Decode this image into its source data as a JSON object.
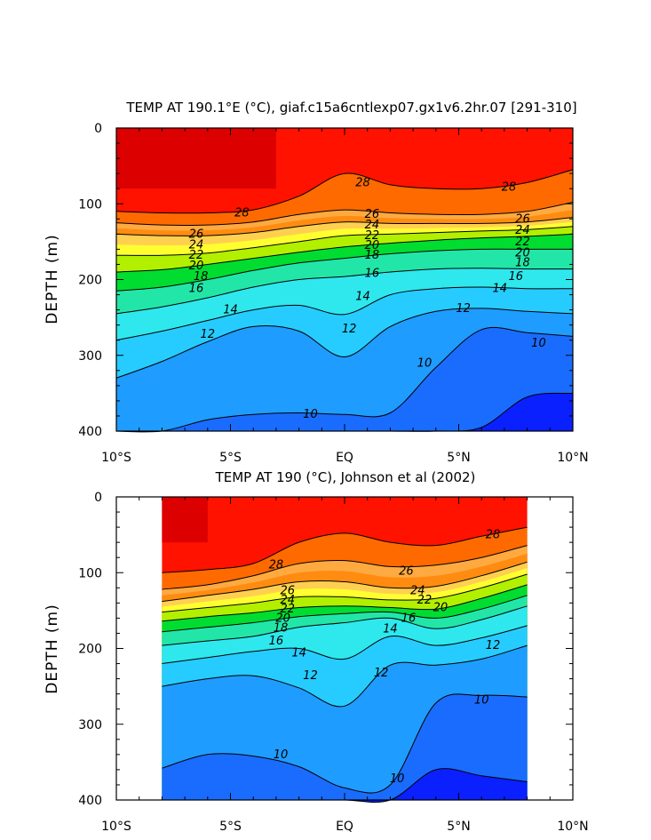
{
  "colors": {
    "band_bottom": "#0a20ff",
    "band_10": "#1a6cff",
    "band_12_deep": "#1f9cff",
    "band_12": "#26ccff",
    "band_14": "#2ee8ee",
    "band_16": "#22e6a8",
    "band_18": "#00dd30",
    "band_20": "#b2f000",
    "band_22": "#ffff30",
    "band_23": "#ffd050",
    "band_24": "#ffaa40",
    "band_25": "#ff8c10",
    "band_26": "#ff6a00",
    "band_28": "#ff4a00",
    "band_surface": "#ff1200",
    "band_warm_pool": "#dd0000",
    "contour_line": "#000000"
  },
  "chart_data": [
    {
      "type": "contour",
      "title": "TEMP AT 190.1°E (°C), giaf.c15a6cntlexp07.gx1v6.2hr.07 [291-310]",
      "xlabel": "",
      "ylabel": "DEPTH (m)",
      "x_ticks": [
        "10°S",
        "5°S",
        "EQ",
        "5°N",
        "10°N"
      ],
      "x_tick_values": [
        -10,
        -5,
        0,
        5,
        10
      ],
      "y_ticks": [
        "0",
        "100",
        "200",
        "300",
        "400"
      ],
      "y_tick_values": [
        0,
        100,
        200,
        300,
        400
      ],
      "xlim": [
        -10,
        10
      ],
      "ylim": [
        400,
        0
      ],
      "data_xlim": [
        -10,
        10
      ],
      "lat": [
        -10,
        -8,
        -6,
        -4,
        -2,
        0,
        2,
        4,
        6,
        8,
        10
      ],
      "contour_levels": [
        10,
        12,
        14,
        16,
        18,
        20,
        22,
        24,
        26,
        28
      ],
      "isotherm_depth": {
        "28": [
          110,
          112,
          112,
          108,
          90,
          60,
          75,
          80,
          80,
          72,
          55
        ],
        "26": [
          125,
          128,
          128,
          124,
          114,
          108,
          112,
          114,
          114,
          110,
          98
        ],
        "24": [
          140,
          142,
          142,
          138,
          130,
          124,
          126,
          126,
          126,
          124,
          118
        ],
        "22": [
          168,
          168,
          165,
          158,
          150,
          142,
          140,
          138,
          136,
          134,
          130
        ],
        "20": [
          190,
          187,
          180,
          172,
          164,
          157,
          152,
          148,
          145,
          143,
          140
        ],
        "18": [
          215,
          210,
          200,
          188,
          178,
          172,
          166,
          162,
          160,
          160,
          160
        ],
        "16": [
          245,
          236,
          224,
          210,
          200,
          196,
          190,
          186,
          185,
          186,
          186
        ],
        "14": [
          280,
          268,
          254,
          240,
          234,
          246,
          220,
          212,
          210,
          212,
          212
        ],
        "12": [
          330,
          308,
          282,
          262,
          268,
          302,
          262,
          242,
          238,
          242,
          245
        ],
        "10": [
          410,
          410,
          385,
          378,
          376,
          378,
          376,
          316,
          266,
          270,
          275
        ]
      },
      "cold_core_depth": [
        401,
        401,
        401,
        401,
        401,
        401,
        401,
        401,
        395,
        355,
        350
      ],
      "warm_pool": {
        "lat_range": [
          -10,
          -3
        ],
        "bottom_depth": 80
      },
      "contour_labels": [
        {
          "value": "28",
          "lat": 0.8,
          "depth": 72
        },
        {
          "value": "28",
          "lat": 7.2,
          "depth": 78
        },
        {
          "value": "28",
          "lat": -4.5,
          "depth": 112
        },
        {
          "value": "26",
          "lat": 1.2,
          "depth": 114
        },
        {
          "value": "26",
          "lat": 7.8,
          "depth": 120
        },
        {
          "value": "26",
          "lat": -6.5,
          "depth": 140
        },
        {
          "value": "24",
          "lat": 1.2,
          "depth": 128
        },
        {
          "value": "24",
          "lat": 7.8,
          "depth": 135
        },
        {
          "value": "24",
          "lat": -6.5,
          "depth": 154
        },
        {
          "value": "22",
          "lat": 1.2,
          "depth": 142
        },
        {
          "value": "22",
          "lat": 7.8,
          "depth": 150
        },
        {
          "value": "22",
          "lat": -6.5,
          "depth": 168
        },
        {
          "value": "20",
          "lat": 1.2,
          "depth": 155
        },
        {
          "value": "20",
          "lat": 7.8,
          "depth": 165
        },
        {
          "value": "20",
          "lat": -6.5,
          "depth": 182
        },
        {
          "value": "18",
          "lat": 1.2,
          "depth": 168
        },
        {
          "value": "18",
          "lat": 7.8,
          "depth": 178
        },
        {
          "value": "18",
          "lat": -6.3,
          "depth": 196
        },
        {
          "value": "16",
          "lat": 1.2,
          "depth": 192
        },
        {
          "value": "16",
          "lat": 7.5,
          "depth": 196
        },
        {
          "value": "16",
          "lat": -6.5,
          "depth": 212
        },
        {
          "value": "14",
          "lat": 0.8,
          "depth": 222
        },
        {
          "value": "14",
          "lat": 6.8,
          "depth": 212
        },
        {
          "value": "14",
          "lat": -5.0,
          "depth": 240
        },
        {
          "value": "12",
          "lat": 5.2,
          "depth": 238
        },
        {
          "value": "12",
          "lat": 0.2,
          "depth": 265
        },
        {
          "value": "12",
          "lat": -6.0,
          "depth": 272
        },
        {
          "value": "10",
          "lat": 3.5,
          "depth": 310
        },
        {
          "value": "10",
          "lat": 8.5,
          "depth": 284
        },
        {
          "value": "10",
          "lat": -1.5,
          "depth": 378
        }
      ]
    },
    {
      "type": "contour",
      "title": "TEMP AT 190 (°C), Johnson et al (2002)",
      "xlabel": "",
      "ylabel": "DEPTH (m)",
      "x_ticks": [
        "10°S",
        "5°S",
        "EQ",
        "5°N",
        "10°N"
      ],
      "x_tick_values": [
        -10,
        -5,
        0,
        5,
        10
      ],
      "y_ticks": [
        "0",
        "100",
        "200",
        "300",
        "400"
      ],
      "y_tick_values": [
        0,
        100,
        200,
        300,
        400
      ],
      "xlim": [
        -10,
        10
      ],
      "ylim": [
        400,
        0
      ],
      "data_xlim": [
        -8,
        8
      ],
      "lat": [
        -8,
        -6,
        -4,
        -2,
        0,
        2,
        4,
        6,
        8
      ],
      "contour_levels": [
        10,
        12,
        14,
        16,
        18,
        20,
        22,
        24,
        26,
        28
      ],
      "isotherm_depth": {
        "28": [
          100,
          96,
          88,
          60,
          48,
          60,
          64,
          52,
          40
        ],
        "26": [
          122,
          116,
          104,
          88,
          84,
          92,
          90,
          80,
          64
        ],
        "24": [
          138,
          130,
          122,
          112,
          112,
          120,
          118,
          104,
          86
        ],
        "22": [
          152,
          146,
          140,
          132,
          132,
          136,
          134,
          120,
          102
        ],
        "20": [
          164,
          158,
          153,
          146,
          144,
          146,
          148,
          134,
          116
        ],
        "18": [
          178,
          172,
          166,
          158,
          154,
          152,
          160,
          148,
          130
        ],
        "16": [
          196,
          190,
          184,
          172,
          166,
          160,
          174,
          162,
          144
        ],
        "14": [
          220,
          212,
          204,
          200,
          214,
          184,
          196,
          186,
          170
        ],
        "12": [
          250,
          240,
          236,
          252,
          276,
          222,
          222,
          214,
          196
        ],
        "10": [
          358,
          340,
          342,
          356,
          384,
          380,
          272,
          262,
          264
        ]
      },
      "cold_core_depth": [
        401,
        401,
        401,
        401,
        401,
        401,
        360,
        368,
        376
      ],
      "warm_pool": {
        "lat_range": [
          -8,
          -6
        ],
        "bottom_depth": 60
      },
      "contour_labels": [
        {
          "value": "28",
          "lat": -3.0,
          "depth": 90
        },
        {
          "value": "28",
          "lat": 6.5,
          "depth": 50
        },
        {
          "value": "26",
          "lat": 2.7,
          "depth": 98
        },
        {
          "value": "26",
          "lat": -2.5,
          "depth": 124
        },
        {
          "value": "24",
          "lat": 3.2,
          "depth": 124
        },
        {
          "value": "24",
          "lat": -2.5,
          "depth": 136
        },
        {
          "value": "22",
          "lat": -2.5,
          "depth": 148
        },
        {
          "value": "22",
          "lat": 3.5,
          "depth": 136
        },
        {
          "value": "20",
          "lat": -2.7,
          "depth": 160
        },
        {
          "value": "20",
          "lat": 4.2,
          "depth": 146
        },
        {
          "value": "18",
          "lat": -2.8,
          "depth": 173
        },
        {
          "value": "16",
          "lat": -3.0,
          "depth": 190
        },
        {
          "value": "16",
          "lat": 2.8,
          "depth": 160
        },
        {
          "value": "14",
          "lat": -2.0,
          "depth": 206
        },
        {
          "value": "14",
          "lat": 2.0,
          "depth": 174
        },
        {
          "value": "12",
          "lat": -1.5,
          "depth": 236
        },
        {
          "value": "12",
          "lat": 1.6,
          "depth": 232
        },
        {
          "value": "12",
          "lat": 6.5,
          "depth": 196
        },
        {
          "value": "10",
          "lat": 6.0,
          "depth": 268
        },
        {
          "value": "10",
          "lat": -2.8,
          "depth": 340
        },
        {
          "value": "10",
          "lat": 2.3,
          "depth": 372
        }
      ]
    }
  ]
}
